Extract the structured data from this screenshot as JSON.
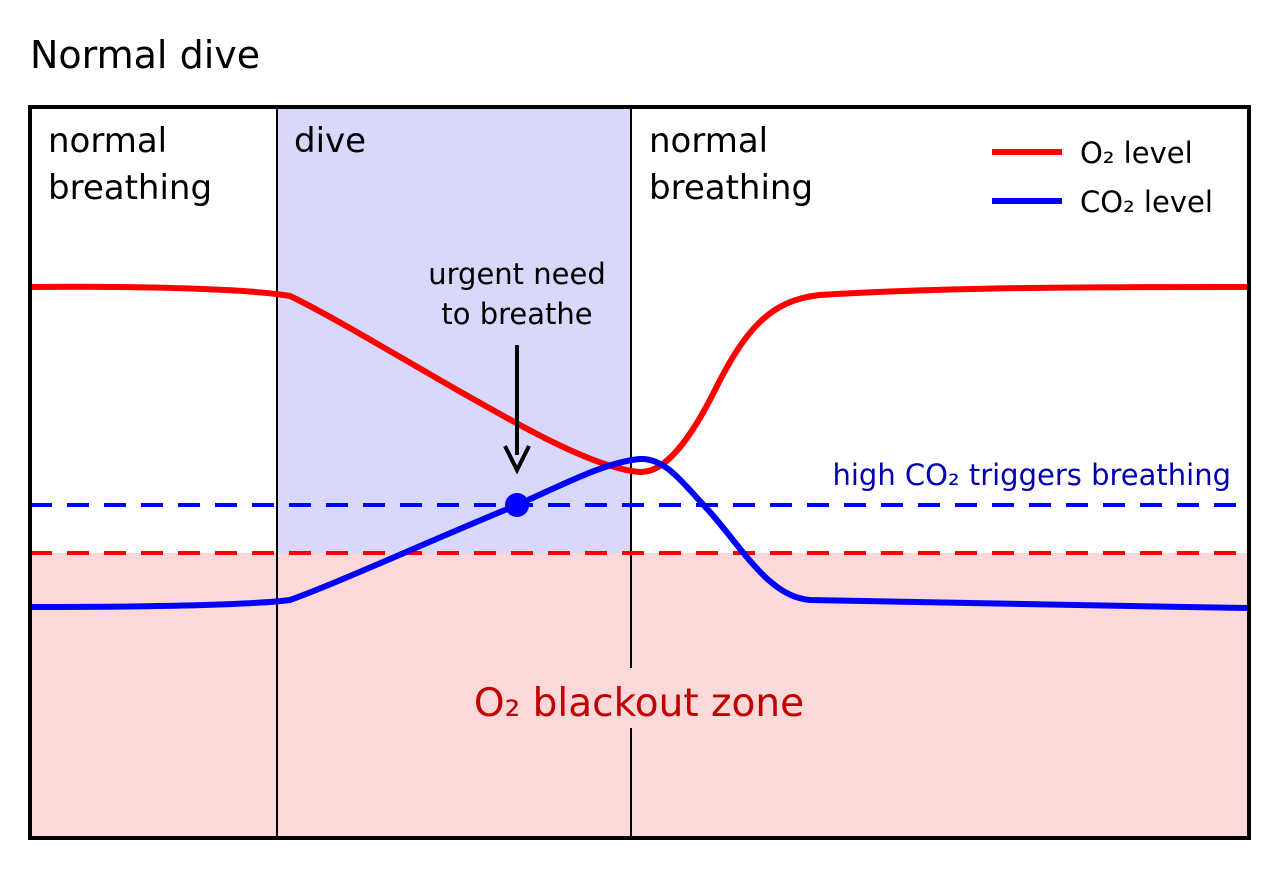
{
  "title": "Normal dive",
  "phases": {
    "before_line1": "normal",
    "before_line2": "breathing",
    "dive": "dive",
    "after_line1": "normal",
    "after_line2": "breathing"
  },
  "legend": {
    "o2": "O₂ level",
    "co2": "CO₂ level"
  },
  "annotations": {
    "urgent_line1": "urgent need",
    "urgent_line2": "to breathe",
    "co2_threshold": "high CO₂ triggers breathing",
    "blackout_zone": "O₂ blackout zone"
  },
  "colors": {
    "o2": "#ff0000",
    "co2": "#0000ff",
    "dive_shade": "#d8d8fc",
    "blackout_shade": "#fdd8d8",
    "blackout_text": "#c00000",
    "threshold_text": "#0000b0"
  }
}
